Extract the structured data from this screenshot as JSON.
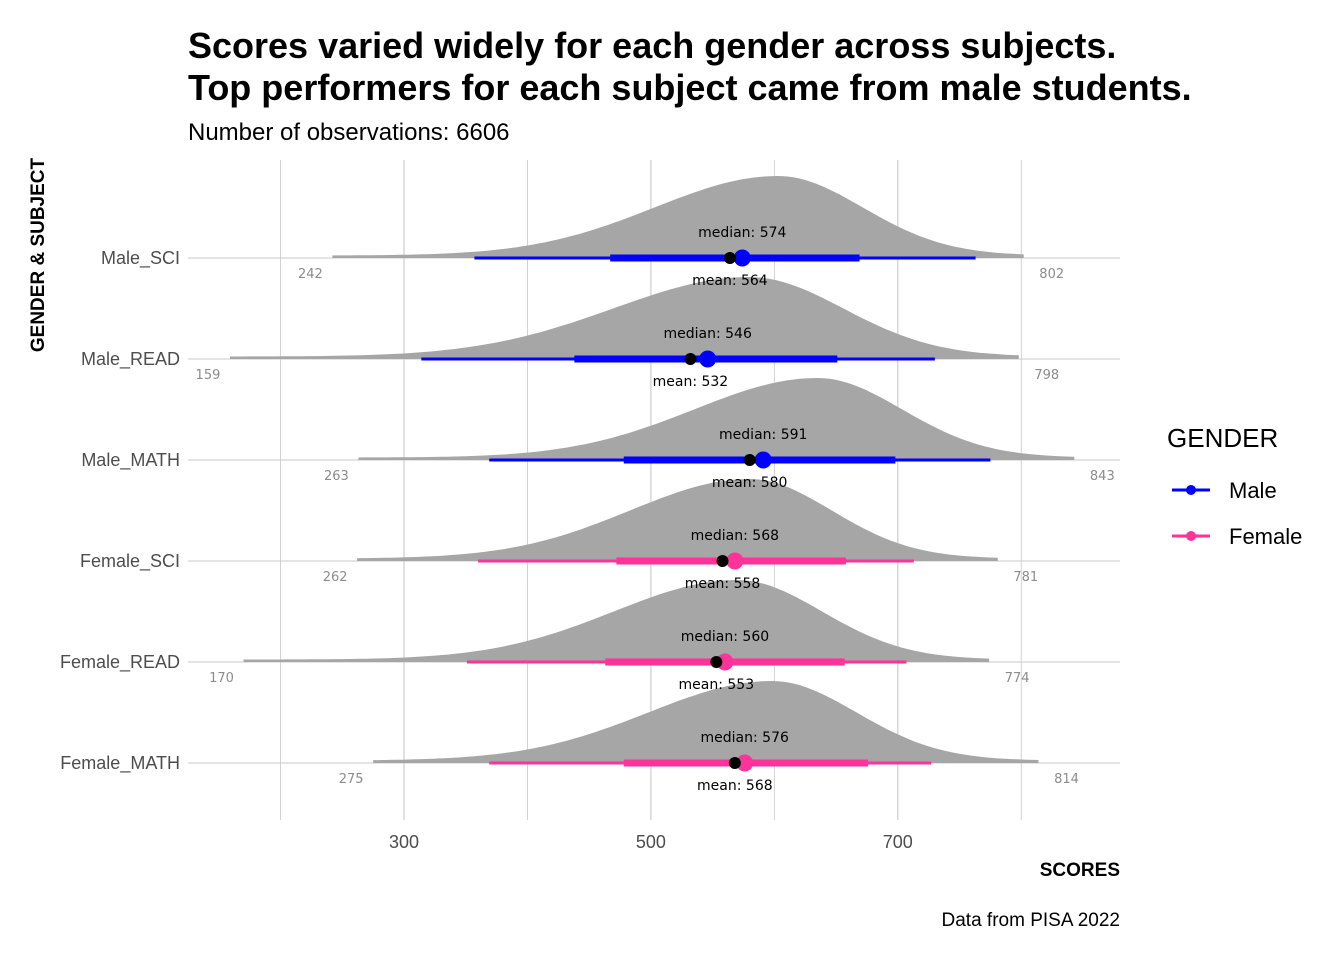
{
  "title_line1": "Scores varied widely for each gender across subjects.",
  "title_line2": "Top performers for each subject came from male students.",
  "subtitle": "Number of observations: 6606",
  "caption": "Data from PISA 2022",
  "median_prefix": "median: ",
  "mean_prefix": "mean:  ",
  "colors": {
    "Male": "#0000ff",
    "Female": "#ff3399",
    "density": "#a6a6a6",
    "grid": "#c8c8c8",
    "point": "#000000"
  },
  "chart_data": {
    "type": "halfeye",
    "title": "Scores varied widely for each gender across subjects.\nTop performers for each subject came from male students.",
    "subtitle": "Number of observations: 6606",
    "xlabel": "SCORES",
    "ylabel": "GENDER & SUBJECT",
    "xlim": [
      125,
      880
    ],
    "x_ticks": [
      300,
      500,
      700
    ],
    "grid": true,
    "legend": {
      "title": "GENDER",
      "position": "right",
      "entries": [
        "Male",
        "Female"
      ]
    },
    "series": [
      {
        "label": "Male_SCI",
        "gender": "Male",
        "median": 574,
        "mean": 564,
        "min": 242,
        "max": 802,
        "interval_66": [
          467,
          669
        ],
        "interval_95": [
          357,
          763
        ],
        "density_mode": 603,
        "density_sd": 95
      },
      {
        "label": "Male_READ",
        "gender": "Male",
        "median": 546,
        "mean": 532,
        "min": 159,
        "max": 798,
        "interval_66": [
          438,
          651
        ],
        "interval_95": [
          314,
          730
        ],
        "density_mode": 580,
        "density_sd": 105
      },
      {
        "label": "Male_MATH",
        "gender": "Male",
        "median": 591,
        "mean": 580,
        "min": 263,
        "max": 843,
        "interval_66": [
          478,
          698
        ],
        "interval_95": [
          369,
          775
        ],
        "density_mode": 635,
        "density_sd": 95
      },
      {
        "label": "Female_SCI",
        "gender": "Female",
        "median": 568,
        "mean": 558,
        "min": 262,
        "max": 781,
        "interval_66": [
          472,
          658
        ],
        "interval_95": [
          360,
          713
        ],
        "density_mode": 580,
        "density_sd": 92
      },
      {
        "label": "Female_READ",
        "gender": "Female",
        "median": 560,
        "mean": 553,
        "min": 170,
        "max": 774,
        "interval_66": [
          463,
          657
        ],
        "interval_95": [
          351,
          707
        ],
        "density_mode": 570,
        "density_sd": 95
      },
      {
        "label": "Female_MATH",
        "gender": "Female",
        "median": 576,
        "mean": 568,
        "min": 275,
        "max": 814,
        "interval_66": [
          478,
          676
        ],
        "interval_95": [
          369,
          727
        ],
        "density_mode": 598,
        "density_sd": 95
      }
    ]
  }
}
